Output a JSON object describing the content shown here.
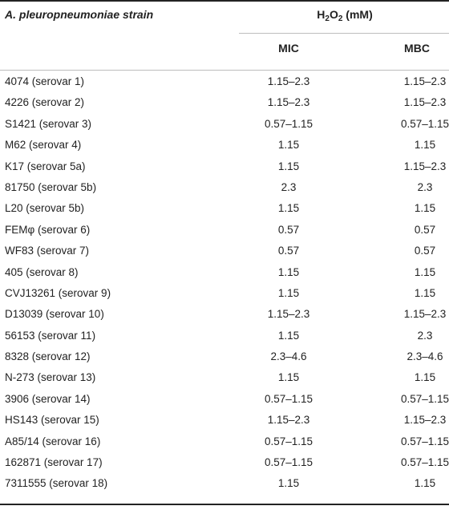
{
  "header": {
    "strain_label": "A. pleuropneumoniae strain",
    "group_prefix": "H",
    "group_sub1": "2",
    "group_mid": "O",
    "group_sub2": "2",
    "group_suffix": " (mM)",
    "mic_label": "MIC",
    "mbc_label": "MBC"
  },
  "rows": [
    {
      "strain": "4074 (serovar 1)",
      "mic": "1.15–2.3",
      "mbc": "1.15–2.3"
    },
    {
      "strain": "4226 (serovar 2)",
      "mic": "1.15–2.3",
      "mbc": "1.15–2.3"
    },
    {
      "strain": "S1421 (serovar 3)",
      "mic": "0.57–1.15",
      "mbc": "0.57–1.15"
    },
    {
      "strain": "M62 (serovar 4)",
      "mic": "1.15",
      "mbc": "1.15"
    },
    {
      "strain": "K17 (serovar 5a)",
      "mic": "1.15",
      "mbc": "1.15–2.3"
    },
    {
      "strain": "81750 (serovar 5b)",
      "mic": "2.3",
      "mbc": "2.3"
    },
    {
      "strain": "L20 (serovar 5b)",
      "mic": "1.15",
      "mbc": "1.15"
    },
    {
      "strain": "FEMφ (serovar 6)",
      "mic": "0.57",
      "mbc": "0.57"
    },
    {
      "strain": "WF83 (serovar 7)",
      "mic": "0.57",
      "mbc": "0.57"
    },
    {
      "strain": "405 (serovar 8)",
      "mic": "1.15",
      "mbc": "1.15"
    },
    {
      "strain": "CVJ13261 (serovar 9)",
      "mic": "1.15",
      "mbc": "1.15"
    },
    {
      "strain": "D13039 (serovar 10)",
      "mic": "1.15–2.3",
      "mbc": "1.15–2.3"
    },
    {
      "strain": "56153 (serovar 11)",
      "mic": "1.15",
      "mbc": "2.3"
    },
    {
      "strain": "8328 (serovar 12)",
      "mic": "2.3–4.6",
      "mbc": "2.3–4.6"
    },
    {
      "strain": "N-273 (serovar 13)",
      "mic": "1.15",
      "mbc": "1.15"
    },
    {
      "strain": "3906 (serovar 14)",
      "mic": "0.57–1.15",
      "mbc": "0.57–1.15"
    },
    {
      "strain": "HS143 (serovar 15)",
      "mic": "1.15–2.3",
      "mbc": "1.15–2.3"
    },
    {
      "strain": "A85/14 (serovar 16)",
      "mic": "0.57–1.15",
      "mbc": "0.57–1.15"
    },
    {
      "strain": "162871 (serovar 17)",
      "mic": "0.57–1.15",
      "mbc": "0.57–1.15"
    },
    {
      "strain": "7311555 (serovar 18)",
      "mic": "1.15",
      "mbc": "1.15"
    }
  ]
}
